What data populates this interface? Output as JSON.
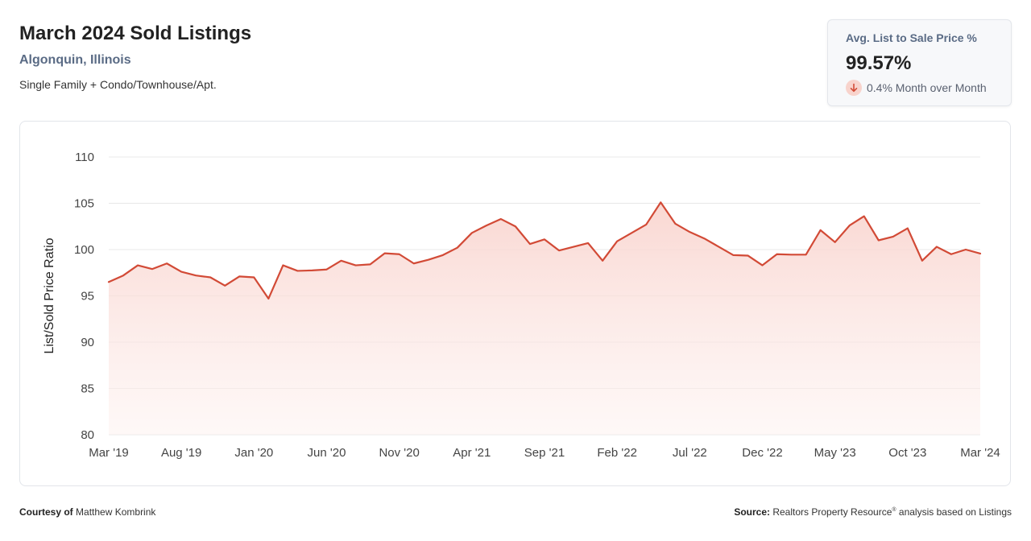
{
  "header": {
    "title": "March 2024 Sold Listings",
    "location": "Algonquin, Illinois",
    "property_types": "Single Family + Condo/Townhouse/Apt."
  },
  "stat_card": {
    "label": "Avg. List to Sale Price %",
    "value": "99.57%",
    "change": "0.4% Month over Month",
    "change_direction": "down",
    "icon": "arrow-down-icon"
  },
  "footer": {
    "courtesy_label": "Courtesy of",
    "courtesy_name": "Matthew Kombrink",
    "source_label": "Source:",
    "source_text_1": "Realtors Property Resource",
    "source_mark": "®",
    "source_text_2": " analysis based on Listings"
  },
  "colors": {
    "line": "#d24a36",
    "fill_top": "#f9d3cd",
    "fill_bottom": "#fdf1ef",
    "grid": "#e8e8e8",
    "accent_text": "#5a6b85"
  },
  "chart_data": {
    "type": "area",
    "ylabel": "List/Sold Price Ratio",
    "xlabel": "",
    "ylim": [
      80,
      110
    ],
    "yticks": [
      80,
      85,
      90,
      95,
      100,
      105,
      110
    ],
    "grid": true,
    "xtick_labels": [
      "Mar '19",
      "Aug '19",
      "Jan '20",
      "Jun '20",
      "Nov '20",
      "Apr '21",
      "Sep '21",
      "Feb '22",
      "Jul '22",
      "Dec '22",
      "May '23",
      "Oct '23",
      "Mar '24"
    ],
    "x": [
      "2019-03",
      "2019-04",
      "2019-05",
      "2019-06",
      "2019-07",
      "2019-08",
      "2019-09",
      "2019-10",
      "2019-11",
      "2019-12",
      "2020-01",
      "2020-02",
      "2020-03",
      "2020-04",
      "2020-05",
      "2020-06",
      "2020-07",
      "2020-08",
      "2020-09",
      "2020-10",
      "2020-11",
      "2020-12",
      "2021-01",
      "2021-02",
      "2021-03",
      "2021-04",
      "2021-05",
      "2021-06",
      "2021-07",
      "2021-08",
      "2021-09",
      "2021-10",
      "2021-11",
      "2021-12",
      "2022-01",
      "2022-02",
      "2022-03",
      "2022-04",
      "2022-05",
      "2022-06",
      "2022-07",
      "2022-08",
      "2022-09",
      "2022-10",
      "2022-11",
      "2022-12",
      "2023-01",
      "2023-02",
      "2023-03",
      "2023-04",
      "2023-05",
      "2023-06",
      "2023-07",
      "2023-08",
      "2023-09",
      "2023-10",
      "2023-11",
      "2023-12",
      "2024-01",
      "2024-02",
      "2024-03"
    ],
    "values": [
      96.5,
      97.2,
      98.3,
      97.9,
      98.5,
      97.6,
      97.2,
      97.0,
      96.1,
      97.1,
      97.0,
      94.7,
      98.3,
      97.7,
      97.75,
      97.85,
      98.8,
      98.3,
      98.4,
      99.6,
      99.5,
      98.5,
      98.9,
      99.4,
      100.2,
      101.8,
      102.6,
      103.3,
      102.5,
      100.6,
      101.1,
      99.9,
      100.3,
      100.7,
      98.8,
      100.9,
      101.8,
      102.7,
      105.1,
      102.8,
      101.9,
      101.2,
      100.3,
      99.4,
      99.35,
      98.3,
      99.5,
      99.45,
      99.45,
      102.1,
      100.8,
      102.6,
      103.6,
      101.0,
      101.4,
      102.3,
      98.8,
      100.3,
      99.5,
      100.0,
      99.57
    ]
  }
}
